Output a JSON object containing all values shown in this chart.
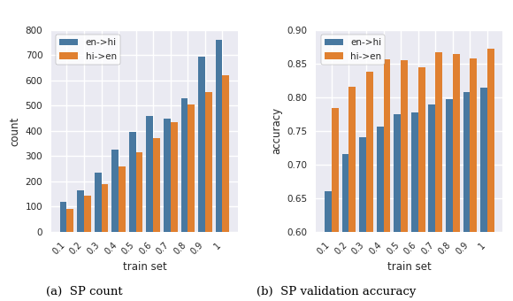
{
  "categories": [
    "0.1",
    "0.2",
    "0.3",
    "0.4",
    "0.5",
    "0.6",
    "0.7",
    "0.8",
    "0.9",
    "1"
  ],
  "count_en_hi": [
    120,
    165,
    235,
    325,
    395,
    460,
    450,
    530,
    695,
    760
  ],
  "count_hi_en": [
    90,
    145,
    190,
    260,
    315,
    370,
    435,
    505,
    555,
    620
  ],
  "acc_en_hi": [
    0.66,
    0.715,
    0.74,
    0.756,
    0.775,
    0.778,
    0.79,
    0.797,
    0.808,
    0.814
  ],
  "acc_hi_en": [
    0.784,
    0.816,
    0.838,
    0.856,
    0.855,
    0.845,
    0.867,
    0.865,
    0.858,
    0.872
  ],
  "color_en_hi": "#4878a0",
  "color_hi_en": "#e08030",
  "ylabel_count": "count",
  "ylabel_acc": "accuracy",
  "xlabel": "train set",
  "label_en_hi": "en->hi",
  "label_hi_en": "hi->en",
  "caption_a": "(a)  SP count",
  "caption_b": "(b)  SP validation accuracy",
  "ylim_count": [
    0,
    800
  ],
  "ylim_acc": [
    0.6,
    0.9
  ],
  "yticks_count": [
    0,
    100,
    200,
    300,
    400,
    500,
    600,
    700,
    800
  ],
  "yticks_acc": [
    0.6,
    0.65,
    0.7,
    0.75,
    0.8,
    0.85,
    0.9
  ]
}
